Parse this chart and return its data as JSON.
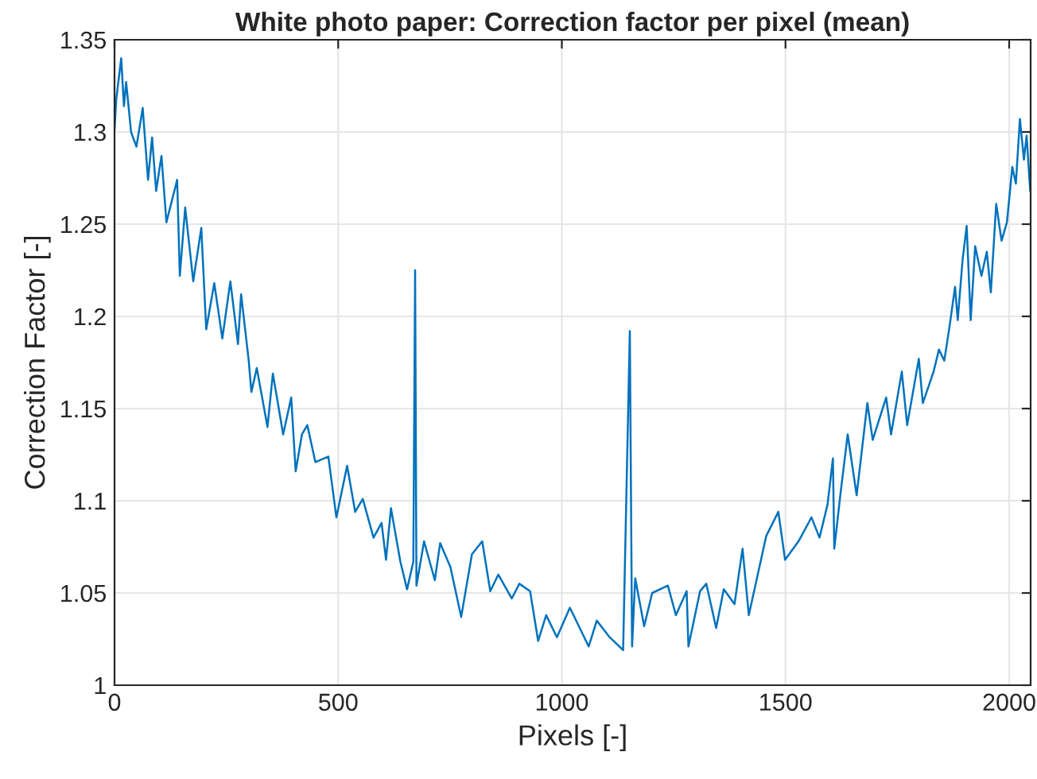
{
  "chart_data": {
    "type": "line",
    "title": "White photo paper: Correction factor per pixel (mean)",
    "xlabel": "Pixels [-]",
    "ylabel": "Correction Factor [-]",
    "xlim": [
      0,
      2048
    ],
    "xticks": [
      0,
      500,
      1000,
      1500,
      2000
    ],
    "ylim": [
      1,
      1.35
    ],
    "yticks": [
      1,
      1.05,
      1.1,
      1.15,
      1.2,
      1.25,
      1.3,
      1.35
    ],
    "grid": true,
    "series": [
      {
        "color": "#0072bd",
        "x": [
          0,
          4,
          15,
          21,
          26,
          37,
          49,
          63,
          75,
          84,
          93,
          105,
          116,
          140,
          146,
          158,
          176,
          194,
          205,
          223,
          241,
          259,
          276,
          283,
          300,
          306,
          318,
          342,
          354,
          377,
          395,
          405,
          419,
          431,
          449,
          478,
          496,
          520,
          538,
          555,
          579,
          597,
          607,
          618,
          639,
          654,
          668,
          672,
          675,
          692,
          716,
          728,
          751,
          775,
          799,
          822,
          840,
          858,
          888,
          905,
          929,
          947,
          965,
          989,
          1018,
          1060,
          1078,
          1107,
          1137,
          1152,
          1157,
          1164,
          1184,
          1202,
          1237,
          1255,
          1279,
          1283,
          1309,
          1323,
          1345,
          1362,
          1386,
          1404,
          1418,
          1457,
          1484,
          1499,
          1529,
          1558,
          1576,
          1594,
          1606,
          1609,
          1623,
          1639,
          1659,
          1683,
          1695,
          1725,
          1736,
          1760,
          1772,
          1798,
          1807,
          1831,
          1843,
          1855,
          1867,
          1879,
          1885,
          1896,
          1905,
          1914,
          1924,
          1938,
          1950,
          1959,
          1971,
          1983,
          1995,
          2007,
          2015,
          2024,
          2033,
          2039,
          2047
        ],
        "values": [
          1.301,
          1.318,
          1.34,
          1.314,
          1.327,
          1.3,
          1.292,
          1.313,
          1.274,
          1.297,
          1.268,
          1.287,
          1.251,
          1.274,
          1.222,
          1.259,
          1.219,
          1.248,
          1.193,
          1.218,
          1.188,
          1.219,
          1.185,
          1.212,
          1.176,
          1.159,
          1.172,
          1.14,
          1.169,
          1.136,
          1.156,
          1.116,
          1.136,
          1.141,
          1.121,
          1.124,
          1.091,
          1.119,
          1.094,
          1.101,
          1.08,
          1.088,
          1.068,
          1.096,
          1.067,
          1.052,
          1.067,
          1.225,
          1.054,
          1.078,
          1.057,
          1.077,
          1.064,
          1.037,
          1.071,
          1.078,
          1.051,
          1.06,
          1.047,
          1.055,
          1.051,
          1.024,
          1.038,
          1.026,
          1.042,
          1.021,
          1.035,
          1.026,
          1.019,
          1.192,
          1.021,
          1.058,
          1.032,
          1.05,
          1.054,
          1.038,
          1.051,
          1.021,
          1.051,
          1.055,
          1.031,
          1.052,
          1.044,
          1.074,
          1.038,
          1.081,
          1.094,
          1.068,
          1.078,
          1.091,
          1.08,
          1.098,
          1.123,
          1.074,
          1.104,
          1.136,
          1.103,
          1.153,
          1.133,
          1.156,
          1.136,
          1.17,
          1.141,
          1.177,
          1.153,
          1.17,
          1.182,
          1.176,
          1.195,
          1.216,
          1.198,
          1.231,
          1.249,
          1.198,
          1.238,
          1.222,
          1.235,
          1.213,
          1.261,
          1.241,
          1.251,
          1.281,
          1.272,
          1.307,
          1.285,
          1.298,
          1.268
        ]
      }
    ]
  }
}
